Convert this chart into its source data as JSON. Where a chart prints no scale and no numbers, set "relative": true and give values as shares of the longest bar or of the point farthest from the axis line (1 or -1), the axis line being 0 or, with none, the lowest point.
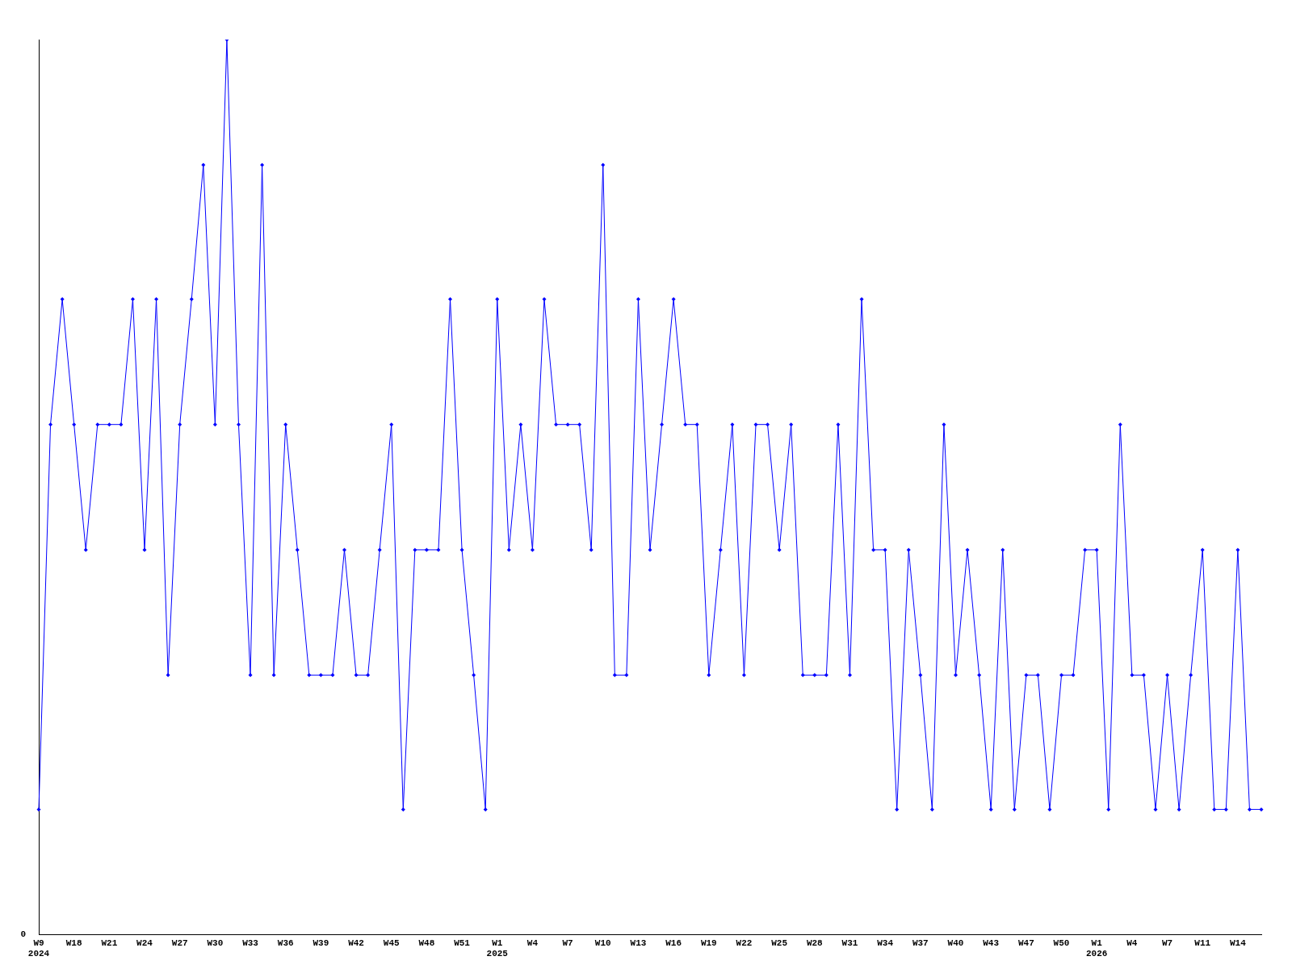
{
  "chart_data": {
    "type": "line",
    "relative": true,
    "marker": "diamond",
    "grid": false,
    "legend": false,
    "annotations": [
      "0"
    ],
    "categories": [
      "W9\n2024",
      null,
      null,
      "W18",
      null,
      null,
      "W21",
      null,
      null,
      "W24",
      null,
      null,
      "W27",
      null,
      null,
      "W30",
      null,
      null,
      "W33",
      null,
      null,
      "W36",
      null,
      null,
      "W39",
      null,
      null,
      "W42",
      null,
      null,
      "W45",
      null,
      null,
      "W48",
      null,
      null,
      "W51",
      null,
      null,
      "W1\n2025",
      null,
      null,
      "W4",
      null,
      null,
      "W7",
      null,
      null,
      "W10",
      null,
      null,
      "W13",
      null,
      null,
      "W16",
      null,
      null,
      "W19",
      null,
      null,
      "W22",
      null,
      null,
      "W25",
      null,
      null,
      "W28",
      null,
      null,
      "W31",
      null,
      null,
      "W34",
      null,
      null,
      "W37",
      null,
      null,
      "W40",
      null,
      null,
      "W43",
      null,
      null,
      "W47",
      null,
      null,
      "W50",
      null,
      null,
      "W1\n2026",
      null,
      null,
      "W4",
      null,
      null,
      "W7",
      null,
      null,
      "W11",
      null,
      null,
      "W14",
      null,
      null
    ],
    "series": [
      {
        "color": "#0000ff",
        "values": [
          0.14,
          0.57,
          0.71,
          0.57,
          0.43,
          0.57,
          0.57,
          0.57,
          0.71,
          0.43,
          0.71,
          0.29,
          0.57,
          0.71,
          0.86,
          0.57,
          1,
          0.57,
          0.29,
          0.86,
          0.29,
          0.57,
          0.43,
          0.29,
          0.29,
          0.29,
          0.43,
          0.29,
          0.29,
          0.43,
          0.57,
          0.14,
          0.43,
          0.43,
          0.43,
          0.71,
          0.43,
          0.29,
          0.14,
          0.71,
          0.43,
          0.57,
          0.43,
          0.71,
          0.57,
          0.57,
          0.57,
          0.43,
          0.86,
          0.29,
          0.29,
          0.71,
          0.43,
          0.57,
          0.71,
          0.57,
          0.57,
          0.29,
          0.43,
          0.57,
          0.29,
          0.57,
          0.57,
          0.43,
          0.57,
          0.29,
          0.29,
          0.29,
          0.57,
          0.29,
          0.71,
          0.43,
          0.43,
          0.14,
          0.43,
          0.29,
          0.14,
          0.57,
          0.29,
          0.43,
          0.29,
          0.14,
          0.43,
          0.14,
          0.29,
          0.29,
          0.14,
          0.29,
          0.29,
          0.43,
          0.43,
          0.14,
          0.57,
          0.29,
          0.29,
          0.14,
          0.29,
          0.14,
          0.29,
          0.43,
          0.14,
          0.14,
          0.43,
          0.14,
          0.14
        ]
      }
    ]
  }
}
